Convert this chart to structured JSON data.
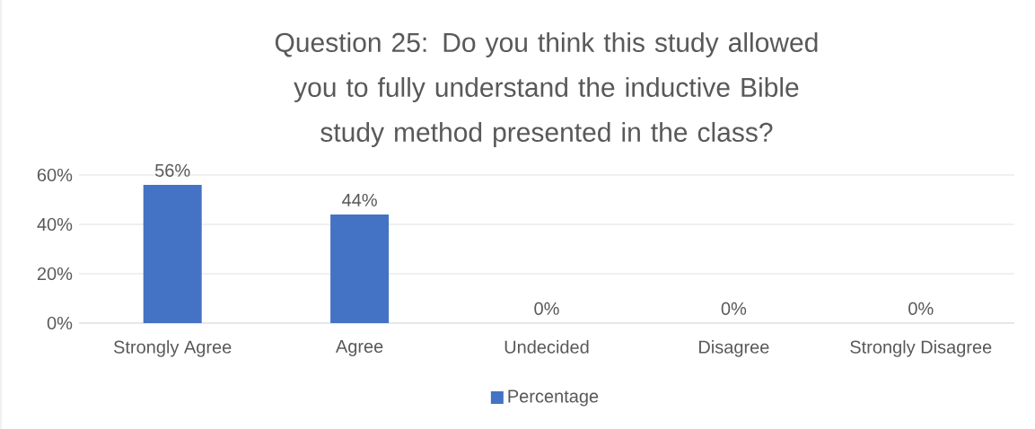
{
  "chart_data": {
    "type": "bar",
    "title": "Question 25: Do you think this study allowed you to fully understand the inductive Bible study method presented in the class?",
    "categories": [
      "Strongly Agree",
      "Agree",
      "Undecided",
      "Disagree",
      "Strongly Disagree"
    ],
    "series": [
      {
        "name": "Percentage",
        "color": "#4472c4",
        "values": [
          56,
          44,
          0,
          0,
          0
        ],
        "value_labels": [
          "56%",
          "44%",
          "0%",
          "0%",
          "0%"
        ]
      }
    ],
    "ylim": [
      0,
      60
    ],
    "yticks": [
      {
        "value": 0,
        "label": "0%"
      },
      {
        "value": 20,
        "label": "20%"
      },
      {
        "value": 40,
        "label": "40%"
      },
      {
        "value": 60,
        "label": "60%"
      }
    ],
    "grid": "y",
    "legend": "bottom"
  }
}
